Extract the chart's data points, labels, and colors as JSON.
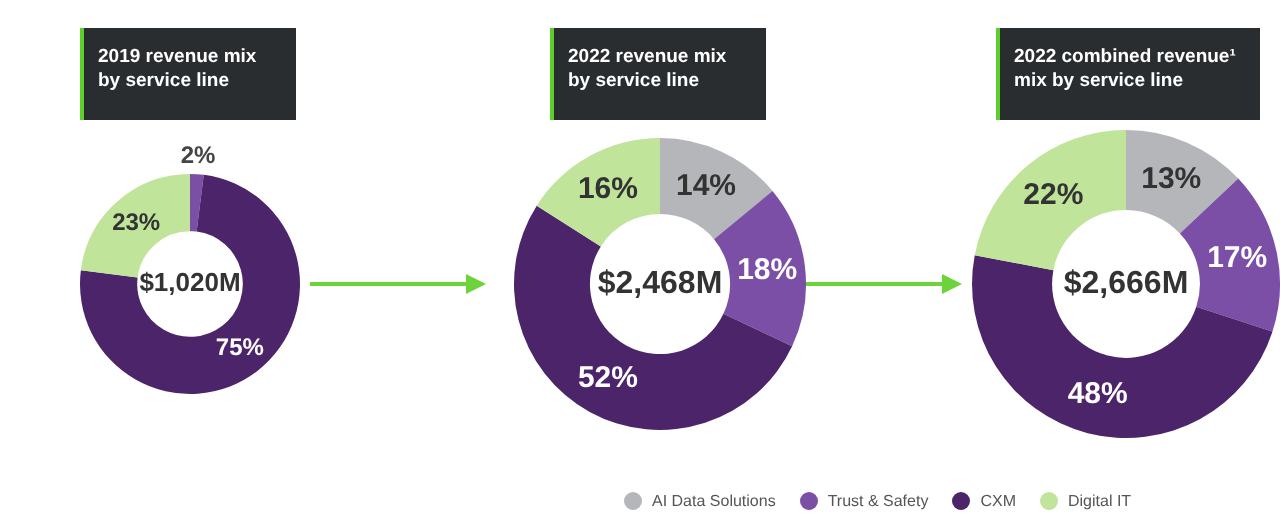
{
  "chart_data": [
    {
      "type": "donut",
      "title": "2019 revenue mix by service line",
      "categories": [
        null,
        null,
        null
      ],
      "values": [
        2,
        75,
        23
      ],
      "colors": [
        "#7b4fa6",
        "#4b2469",
        "#bfe49a"
      ],
      "value_labels": [
        "2%",
        "75%",
        "23%"
      ],
      "annotations": [
        "$1,020M"
      ]
    },
    {
      "type": "donut",
      "title": "2022 revenue mix by service line",
      "categories": [
        null,
        null,
        null,
        null
      ],
      "values": [
        14,
        18,
        52,
        16
      ],
      "colors": [
        "#b4b6ba",
        "#7b4fa6",
        "#4b2469",
        "#bfe49a"
      ],
      "value_labels": [
        "14%",
        "18%",
        "52%",
        "16%"
      ],
      "annotations": [
        "$2,468M"
      ]
    },
    {
      "type": "donut",
      "title": "2022 combined revenue¹ mix by service line",
      "categories": [
        "AI Data Solutions",
        "Trust & Safety",
        "CXM",
        "Digital IT"
      ],
      "values": [
        13,
        17,
        48,
        22
      ],
      "colors": [
        "#b4b6ba",
        "#7b4fa6",
        "#4b2469",
        "#bfe49a"
      ],
      "value_labels": [
        "13%",
        "17%",
        "48%",
        "22%"
      ],
      "annotations": [
        "$2,666M"
      ],
      "legend": "bottom"
    }
  ]
}
